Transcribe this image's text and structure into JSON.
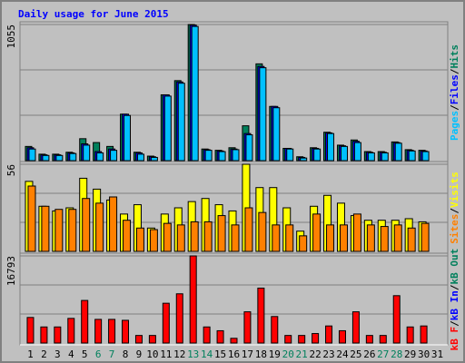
{
  "title": "Daily usage for June 2015",
  "separator": "/",
  "categories": [
    "1",
    "2",
    "3",
    "4",
    "5",
    "6",
    "7",
    "8",
    "9",
    "10",
    "11",
    "12",
    "13",
    "14",
    "15",
    "16",
    "17",
    "18",
    "19",
    "20",
    "21",
    "22",
    "23",
    "24",
    "25",
    "26",
    "27",
    "28",
    "29",
    "30",
    "31"
  ],
  "category_colors": [
    "#000000",
    "#000000",
    "#000000",
    "#000000",
    "#000000",
    "#00805c",
    "#00805c",
    "#000000",
    "#000000",
    "#000000",
    "#000000",
    "#000000",
    "#00805c",
    "#00805c",
    "#000000",
    "#000000",
    "#000000",
    "#000000",
    "#000000",
    "#00805c",
    "#00805c",
    "#000000",
    "#000000",
    "#000000",
    "#000000",
    "#000000",
    "#00805c",
    "#00805c",
    "#000000",
    "#000000",
    "#000000"
  ],
  "chart_data": [
    {
      "type": "bar",
      "ylim": [
        0,
        1055
      ],
      "yticks": [
        1055
      ],
      "series": [
        {
          "name": "Pages",
          "color": "#00c0ff",
          "values": [
            90,
            40,
            40,
            55,
            120,
            60,
            80,
            350,
            50,
            25,
            500,
            600,
            1040,
            80,
            70,
            85,
            200,
            720,
            410,
            90,
            20,
            90,
            210,
            110,
            140,
            60,
            60,
            135,
            75,
            70,
            null
          ]
        },
        {
          "name": "Files",
          "color": "#0000ff",
          "values": [
            100,
            45,
            45,
            60,
            130,
            70,
            90,
            360,
            60,
            30,
            510,
            610,
            1050,
            85,
            75,
            90,
            210,
            730,
            420,
            95,
            25,
            95,
            215,
            115,
            150,
            65,
            65,
            140,
            80,
            75,
            null
          ]
        },
        {
          "name": "Hits",
          "color": "#00805c",
          "values": [
            110,
            50,
            50,
            65,
            170,
            140,
            110,
            360,
            65,
            35,
            510,
            620,
            1055,
            90,
            80,
            100,
            270,
            750,
            420,
            95,
            30,
            100,
            220,
            120,
            160,
            70,
            70,
            145,
            85,
            80,
            null
          ]
        }
      ]
    },
    {
      "type": "bar",
      "ylim": [
        0,
        56
      ],
      "yticks": [
        56
      ],
      "series": [
        {
          "name": "Sites",
          "color": "#ff8000",
          "values": [
            42,
            29,
            27,
            27,
            34,
            31,
            35,
            20,
            15,
            14,
            18,
            17,
            19,
            19,
            23,
            17,
            28,
            25,
            17,
            17,
            10,
            24,
            17,
            17,
            24,
            17,
            16,
            17,
            15,
            18,
            null
          ]
        },
        {
          "name": "Visits",
          "color": "#ffff00",
          "values": [
            45,
            29,
            26,
            28,
            47,
            40,
            33,
            24,
            30,
            15,
            24,
            28,
            32,
            34,
            30,
            26,
            56,
            41,
            41,
            28,
            13,
            29,
            36,
            31,
            23,
            20,
            20,
            20,
            21,
            19,
            null
          ]
        }
      ]
    },
    {
      "type": "bar",
      "ylim": [
        0,
        16793
      ],
      "yticks": [
        16793
      ],
      "series": [
        {
          "name": "kB F",
          "color": "#ff0000",
          "values": [
            4930,
            3100,
            3100,
            4750,
            8210,
            4560,
            4560,
            4380,
            1460,
            1460,
            7670,
            9490,
            16793,
            3100,
            2370,
            910,
            6020,
            10590,
            5110,
            1460,
            1460,
            1830,
            3290,
            2370,
            6020,
            1460,
            1460,
            9130,
            3100,
            3290,
            null
          ]
        }
      ],
      "legend": [
        {
          "name": "kB In",
          "color": "#0000ff"
        },
        {
          "name": "kB Out",
          "color": "#00805c"
        }
      ]
    }
  ]
}
